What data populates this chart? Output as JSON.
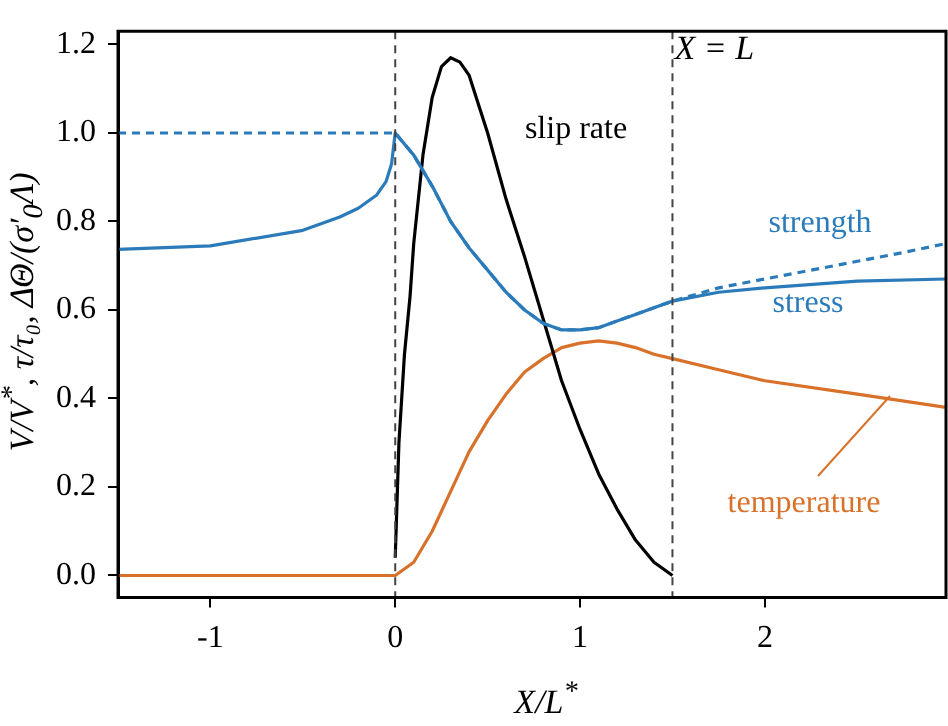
{
  "chart_data": {
    "type": "line",
    "xlabel": "X/L$^{*}$",
    "ylabel": "V/V$^{*}$, τ/τ₀, ΔΘ/(σ′$_{0}$Λ)",
    "xlim": [
      -1.5,
      2.98
    ],
    "ylim": [
      -0.05,
      1.23
    ],
    "xticks": [
      -1,
      0,
      1,
      2
    ],
    "yticks": [
      {
        "value": 0,
        "label": "0.0"
      },
      {
        "value": 0.2,
        "label": "0.2"
      },
      {
        "value": 0.4,
        "label": "0.4"
      },
      {
        "value": 0.6,
        "label": "0.6"
      },
      {
        "value": 0.8,
        "label": "0.8"
      },
      {
        "value": 1,
        "label": "1.0"
      },
      {
        "value": 1.2,
        "label": "1.2"
      }
    ],
    "grid": false,
    "legend": false,
    "marker": "none",
    "series": [
      {
        "name": "strength",
        "color": "#2b7bba",
        "line_style": "dashed",
        "x": [
          -1.5,
          0,
          0.1,
          0.2,
          0.3,
          0.4,
          0.5,
          0.6,
          0.7,
          0.8,
          0.9,
          1.0,
          1.1,
          1.2,
          1.3,
          1.4,
          1.5,
          1.75,
          2.0,
          2.25,
          2.5,
          2.75,
          2.98
        ],
        "values": [
          1.0,
          1.0,
          0.95,
          0.88,
          0.8,
          0.74,
          0.69,
          0.64,
          0.6,
          0.57,
          0.555,
          0.555,
          0.56,
          0.575,
          0.59,
          0.605,
          0.62,
          0.65,
          0.67,
          0.69,
          0.71,
          0.73,
          0.75
        ]
      },
      {
        "name": "stress",
        "color": "#2b7bba",
        "line_style": "solid",
        "x": [
          -1.5,
          -1.0,
          -0.5,
          -0.3,
          -0.2,
          -0.1,
          -0.05,
          -0.02,
          0,
          0.1,
          0.2,
          0.3,
          0.4,
          0.5,
          0.6,
          0.7,
          0.8,
          0.9,
          1.0,
          1.1,
          1.2,
          1.3,
          1.4,
          1.5,
          1.75,
          2.0,
          2.5,
          2.98
        ],
        "values": [
          0.737,
          0.745,
          0.78,
          0.81,
          0.83,
          0.86,
          0.89,
          0.93,
          1.0,
          0.95,
          0.88,
          0.8,
          0.74,
          0.69,
          0.64,
          0.6,
          0.57,
          0.555,
          0.555,
          0.56,
          0.575,
          0.59,
          0.605,
          0.62,
          0.64,
          0.65,
          0.665,
          0.67
        ]
      },
      {
        "name": "slip rate",
        "color": "#000000",
        "line_style": "solid",
        "x": [
          0,
          0.02,
          0.05,
          0.08,
          0.1,
          0.15,
          0.2,
          0.25,
          0.3,
          0.35,
          0.4,
          0.5,
          0.6,
          0.7,
          0.8,
          0.9,
          1.0,
          1.1,
          1.2,
          1.3,
          1.4,
          1.5
        ],
        "values": [
          0.04,
          0.3,
          0.5,
          0.63,
          0.75,
          0.95,
          1.08,
          1.15,
          1.17,
          1.16,
          1.13,
          1.0,
          0.85,
          0.72,
          0.58,
          0.44,
          0.33,
          0.23,
          0.15,
          0.08,
          0.03,
          0.0
        ]
      },
      {
        "name": "temperature",
        "color": "#d8712a",
        "line_style": "solid",
        "x": [
          -1.5,
          0,
          0.1,
          0.2,
          0.3,
          0.4,
          0.5,
          0.6,
          0.7,
          0.8,
          0.9,
          1.0,
          1.1,
          1.2,
          1.3,
          1.4,
          1.5,
          1.75,
          2.0,
          2.5,
          2.98
        ],
        "values": [
          0,
          0,
          0.03,
          0.1,
          0.19,
          0.28,
          0.35,
          0.41,
          0.46,
          0.49,
          0.515,
          0.525,
          0.53,
          0.525,
          0.515,
          0.5,
          0.49,
          0.465,
          0.44,
          0.41,
          0.38
        ]
      }
    ],
    "ref_lines": [
      {
        "axis": "x",
        "value": 0,
        "label": null,
        "color": "#444444",
        "line_style": "dashed"
      },
      {
        "axis": "x",
        "value": 1.5,
        "label": "X = L",
        "color": "#444444",
        "line_style": "dashed"
      }
    ]
  }
}
